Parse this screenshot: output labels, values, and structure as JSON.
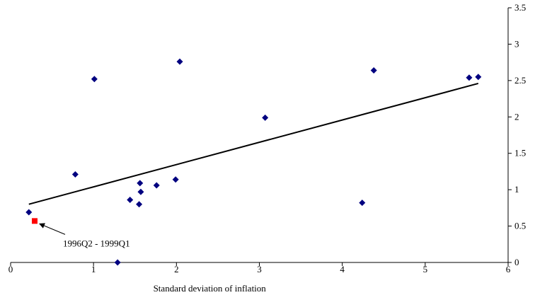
{
  "chart_data": {
    "type": "scatter",
    "xlabel": "Standard deviation of inflation",
    "ylabel": "",
    "xlim": [
      0,
      6
    ],
    "ylim": [
      0,
      3.5
    ],
    "x_ticks": [
      "0",
      "1",
      "2",
      "3",
      "4",
      "5",
      "6"
    ],
    "y_ticks": [
      "0",
      "0.5",
      "1",
      "1.5",
      "2",
      "2.5",
      "3",
      "3.5"
    ],
    "y_axis_side": "right",
    "grid": false,
    "series": [
      {
        "color": "#000080",
        "marker": "diamond",
        "points": [
          {
            "x": 0.22,
            "y": 0.69
          },
          {
            "x": 0.78,
            "y": 1.21
          },
          {
            "x": 1.01,
            "y": 2.52
          },
          {
            "x": 1.29,
            "y": 0.0
          },
          {
            "x": 1.44,
            "y": 0.86
          },
          {
            "x": 1.55,
            "y": 0.8
          },
          {
            "x": 1.56,
            "y": 1.09
          },
          {
            "x": 1.57,
            "y": 0.97
          },
          {
            "x": 1.76,
            "y": 1.06
          },
          {
            "x": 1.99,
            "y": 1.14
          },
          {
            "x": 2.04,
            "y": 2.76
          },
          {
            "x": 3.07,
            "y": 1.99
          },
          {
            "x": 4.24,
            "y": 0.82
          },
          {
            "x": 4.38,
            "y": 2.64
          },
          {
            "x": 5.53,
            "y": 2.54
          },
          {
            "x": 5.64,
            "y": 2.55
          }
        ]
      },
      {
        "color": "#ff0000",
        "marker": "square",
        "points": [
          {
            "x": 0.29,
            "y": 0.57
          }
        ]
      }
    ],
    "trendline": {
      "color": "#000000",
      "start": {
        "x": 0.22,
        "y": 0.8
      },
      "end": {
        "x": 5.64,
        "y": 2.46
      }
    },
    "annotations": [
      {
        "text": "1996Q2 - 1999Q1",
        "target": {
          "x": 0.29,
          "y": 0.57
        }
      }
    ]
  }
}
